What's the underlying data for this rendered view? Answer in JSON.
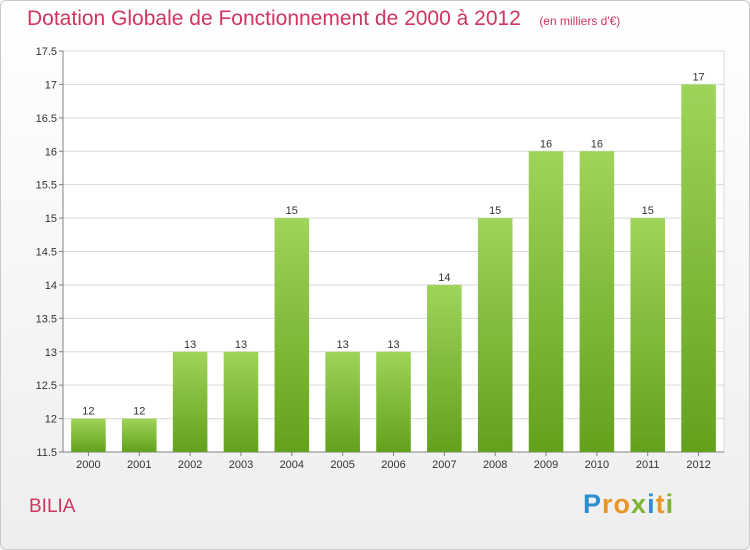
{
  "title": "Dotation Globale de Fonctionnement de 2000 à 2012",
  "unit_note": "(en milliers d'€)",
  "commune": "BILIA",
  "logo": {
    "text": "Proxiti",
    "letters": [
      "P",
      "r",
      "o",
      "x",
      "i",
      "t",
      "i"
    ],
    "colors": [
      "#2a8fd1",
      "#e8952a",
      "#e8952a",
      "#7fb336",
      "#2a8fd1",
      "#e8952a",
      "#7fb336"
    ]
  },
  "colors": {
    "title": "#d0345f",
    "bar_light": "#9fd45a",
    "bar_dark": "#63a11b",
    "grid": "#d9d9d9",
    "axis": "#808080",
    "text": "#333333"
  },
  "chart_data": {
    "type": "bar",
    "categories": [
      "2000",
      "2001",
      "2002",
      "2003",
      "2004",
      "2005",
      "2006",
      "2007",
      "2008",
      "2009",
      "2010",
      "2011",
      "2012"
    ],
    "values": [
      12,
      12,
      13,
      13,
      15,
      13,
      13,
      14,
      15,
      16,
      16,
      15,
      17
    ],
    "data_labels": [
      "12",
      "12",
      "13",
      "13",
      "15",
      "13",
      "13",
      "14",
      "15",
      "16",
      "16",
      "15",
      "17"
    ],
    "y_ticks": [
      11.5,
      12,
      12.5,
      13,
      13.5,
      14,
      14.5,
      15,
      15.5,
      16,
      16.5,
      17,
      17.5
    ],
    "y_tick_labels": [
      "11.5",
      "12",
      "12.5",
      "13",
      "13.5",
      "14",
      "14.5",
      "15",
      "15.5",
      "16",
      "16.5",
      "17",
      "17.5"
    ],
    "ylim": [
      11.5,
      17.5
    ],
    "grid": true,
    "xlabel": "",
    "ylabel": ""
  }
}
